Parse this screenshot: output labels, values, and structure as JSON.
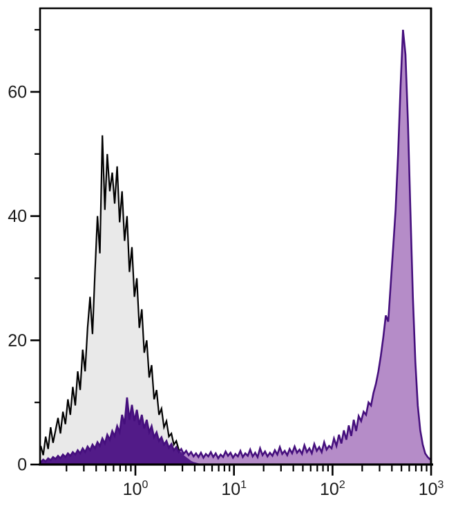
{
  "page": {
    "background": "#ffffff"
  },
  "chart_data": {
    "type": "area",
    "variant": "flow_cytometry_histogram_overlay",
    "title": "",
    "xlabel": "",
    "ylabel": "",
    "x_scale": "log10",
    "x_range": [
      0.108,
      1000
    ],
    "y_range": [
      0,
      73
    ],
    "grid": false,
    "legend": false,
    "frame": true,
    "axis_color": "#000000",
    "label_color": "#1a1a1a",
    "y_axis": {
      "major_ticks": [
        {
          "value": 0,
          "label": "0"
        },
        {
          "value": 20,
          "label": "20"
        },
        {
          "value": 40,
          "label": "40"
        },
        {
          "value": 60,
          "label": "60"
        }
      ],
      "minor_ticks": [
        10,
        30,
        50,
        70
      ]
    },
    "x_axis": {
      "major_ticks": [
        {
          "value": 1,
          "mantissa": "10",
          "exponent": "0"
        },
        {
          "value": 10,
          "mantissa": "10",
          "exponent": "1"
        },
        {
          "value": 100,
          "mantissa": "10",
          "exponent": "2"
        },
        {
          "value": 1000,
          "mantissa": "10",
          "exponent": "3"
        }
      ],
      "minor_ticks": [
        0.2,
        0.3,
        0.4,
        0.5,
        0.6,
        0.7,
        0.8,
        0.9,
        2,
        3,
        4,
        5,
        6,
        7,
        8,
        9,
        20,
        30,
        40,
        50,
        60,
        70,
        80,
        90,
        200,
        300,
        400,
        500,
        600,
        700,
        800,
        900
      ]
    },
    "overlap_fill": "#521b88",
    "series": [
      {
        "name": "gray_control_histogram",
        "fill": "#e9e9e9",
        "stroke": "#000000",
        "stroke_width": 2.2,
        "log_start": -0.96,
        "log_step": 0.025,
        "values": [
          3,
          1.5,
          4.5,
          2.5,
          6,
          3.5,
          5.5,
          7.5,
          5,
          8.5,
          6.5,
          10.5,
          8,
          12.5,
          9.5,
          15,
          12,
          18.5,
          15,
          22,
          27,
          21,
          31,
          40,
          34,
          53,
          41,
          50,
          44,
          47,
          42,
          48,
          39,
          44,
          36,
          40,
          31,
          35,
          27,
          30,
          22,
          25,
          18,
          20,
          14,
          16,
          10.5,
          12,
          8,
          9,
          6,
          7,
          4.5,
          5,
          3.2,
          3.8,
          2.4,
          2,
          1.5,
          1.2,
          0.9,
          0.6,
          0.4,
          0.3,
          0.2,
          0.1,
          0.1,
          0,
          0,
          0,
          0
        ]
      },
      {
        "name": "purple_stained_histogram",
        "fill": "#b58cc8",
        "stroke": "#450f7d",
        "stroke_width": 2.6,
        "log_start": -0.96,
        "log_step": 0.025,
        "values": [
          0.4,
          0.8,
          0.5,
          1,
          0.7,
          1.2,
          0.9,
          1.4,
          1,
          1.6,
          1.2,
          1.8,
          1.4,
          2,
          1.6,
          2.3,
          1.8,
          2.6,
          2,
          2.9,
          2.3,
          3.2,
          2.6,
          3.6,
          3,
          4.2,
          3.4,
          4.8,
          4,
          5.4,
          4.6,
          6.2,
          5.2,
          8,
          6.5,
          10.8,
          7.2,
          9.6,
          7,
          8.8,
          6.4,
          8,
          5.8,
          7.2,
          5.2,
          6.2,
          4.4,
          5.2,
          3.8,
          4.4,
          3.2,
          3.8,
          2.7,
          3.3,
          2.3,
          2.8,
          2,
          2.5,
          1.7,
          2.2,
          1.5,
          2,
          1.3,
          1.8,
          1.2,
          1.9,
          1.1,
          1.7,
          1.3,
          2,
          1.2,
          1.8,
          1,
          1.6,
          1.2,
          2.1,
          1.4,
          1.9,
          1.1,
          1.7,
          1.3,
          2.2,
          1.2,
          1.8,
          1.4,
          2.4,
          1.3,
          1.9,
          1.2,
          2.6,
          1.5,
          2.1,
          1.3,
          1.9,
          1.4,
          2.3,
          1.6,
          2.8,
          1.7,
          2.2,
          1.5,
          2.5,
          1.8,
          2.9,
          1.9,
          2.4,
          1.7,
          3.1,
          2,
          2.6,
          1.8,
          3.3,
          2.2,
          2.8,
          2,
          3.6,
          2.4,
          3,
          2.6,
          4.2,
          3,
          4.8,
          3.4,
          5.5,
          4,
          6.3,
          4.6,
          7.2,
          5.4,
          7.8,
          7,
          8.5,
          8,
          10,
          9.5,
          11.5,
          13,
          15,
          17.5,
          20.5,
          24,
          23,
          29,
          35,
          41,
          50,
          61,
          70,
          66,
          55,
          41,
          27,
          16.5,
          9.5,
          5.5,
          3.2,
          1.8,
          1.2,
          0.8
        ]
      }
    ]
  }
}
